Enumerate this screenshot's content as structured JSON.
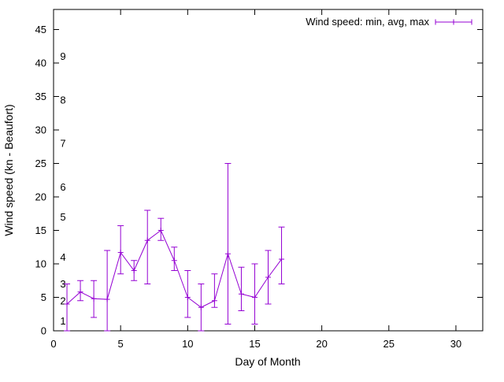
{
  "figure": {
    "background": "#ffffff",
    "axis_color": "#000000"
  },
  "chart_data": {
    "type": "line",
    "subtype": "yerrorlines",
    "title": "",
    "legend": {
      "label": "Wind speed: min, avg, max",
      "position": "top-right"
    },
    "xlabel": "Day of Month",
    "ylabel": "Wind speed (kn - Beaufort)",
    "xlim": [
      0,
      32
    ],
    "ylim": [
      0,
      48
    ],
    "xticks": [
      0,
      5,
      10,
      15,
      20,
      25,
      30
    ],
    "yticks": [
      0,
      5,
      10,
      15,
      20,
      25,
      30,
      35,
      40,
      45
    ],
    "beaufort_labels": [
      {
        "label": "1",
        "kn": 1.5
      },
      {
        "label": "2",
        "kn": 4.5
      },
      {
        "label": "3",
        "kn": 7
      },
      {
        "label": "4",
        "kn": 11
      },
      {
        "label": "5",
        "kn": 17
      },
      {
        "label": "6",
        "kn": 21.5
      },
      {
        "label": "7",
        "kn": 28
      },
      {
        "label": "8",
        "kn": 34.5
      },
      {
        "label": "9",
        "kn": 41
      }
    ],
    "series_color": "#9400d3",
    "grid": false,
    "x": [
      1,
      2,
      3,
      4,
      5,
      6,
      7,
      8,
      9,
      10,
      11,
      12,
      13,
      14,
      15,
      16,
      17
    ],
    "avg": [
      4,
      5.8,
      4.8,
      4.7,
      11.7,
      9,
      13.5,
      15,
      10.5,
      5,
      3.5,
      4.5,
      11.5,
      5.5,
      5,
      8,
      10.7
    ],
    "min": [
      0,
      4.5,
      2,
      0,
      8.5,
      7.5,
      7,
      13.5,
      9,
      2,
      0,
      3.5,
      1,
      3,
      1,
      4,
      7
    ],
    "max": [
      7,
      7.5,
      7.5,
      12,
      15.7,
      10.5,
      18,
      16.8,
      12.5,
      9,
      7,
      8.5,
      25,
      9.5,
      10,
      12,
      15.5
    ]
  }
}
